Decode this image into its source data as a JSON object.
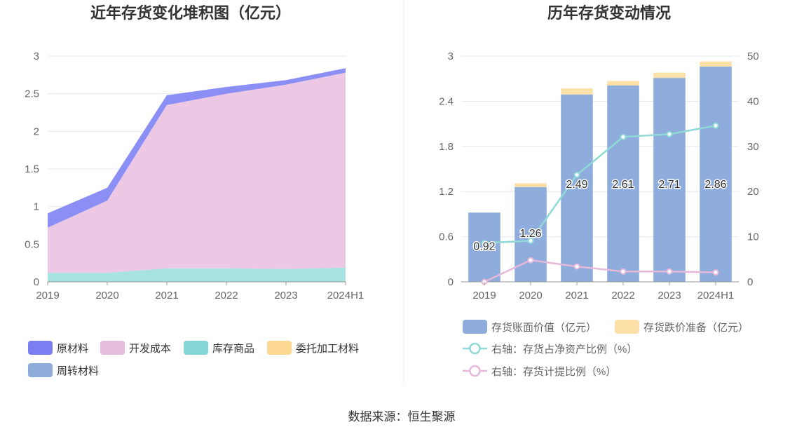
{
  "source": "数据来源：恒生聚源",
  "chart_data": [
    {
      "type": "area",
      "stacked": true,
      "title": "近年存货变化堆积图（亿元）",
      "categories": [
        "2019",
        "2020",
        "2021",
        "2022",
        "2023",
        "2024H1"
      ],
      "ylim": [
        0,
        3
      ],
      "yticks": [
        "0",
        "0.5",
        "1",
        "1.5",
        "2",
        "2.5",
        "3"
      ],
      "ytick_values": [
        0,
        0.5,
        1,
        1.5,
        2,
        2.5,
        3
      ],
      "grid": true,
      "legend_position": "bottom-left",
      "series": [
        {
          "name": "原材料",
          "values": [
            0.19,
            0.17,
            0.13,
            0.09,
            0.06,
            0.06
          ],
          "color": "#8b8ef5"
        },
        {
          "name": "开发成本",
          "values": [
            0.6,
            0.96,
            2.17,
            2.32,
            2.45,
            2.59
          ],
          "color": "#ecc8e4"
        },
        {
          "name": "库存商品",
          "values": [
            0.12,
            0.12,
            0.18,
            0.18,
            0.17,
            0.19
          ],
          "color": "#a6e3e1"
        },
        {
          "name": "委托加工材料",
          "values": [
            0,
            0,
            0,
            0,
            0,
            0
          ],
          "color": "#fdd893"
        },
        {
          "name": "周转材料",
          "values": [
            0,
            0,
            0,
            0,
            0,
            0
          ],
          "color": "#8eacdc"
        }
      ],
      "legend": [
        {
          "name": "原材料",
          "color": "#7b7ef0"
        },
        {
          "name": "开发成本",
          "color": "#e6bcdc"
        },
        {
          "name": "库存商品",
          "color": "#84d6d4"
        },
        {
          "name": "委托加工材料",
          "color": "#fdd893"
        },
        {
          "name": "周转材料",
          "color": "#8eacdc"
        }
      ]
    },
    {
      "type": "bar",
      "title": "历年存货变动情况",
      "categories": [
        "2019",
        "2020",
        "2021",
        "2022",
        "2023",
        "2024H1"
      ],
      "ylim": [
        0,
        3
      ],
      "yticks": [
        "0",
        "0.6",
        "1.2",
        "1.8",
        "2.4",
        "3"
      ],
      "ytick_values": [
        0,
        0.6,
        1.2,
        1.8,
        2.4,
        3
      ],
      "y2lim": [
        0,
        50
      ],
      "y2ticks": [
        "0",
        "10",
        "20",
        "30",
        "40",
        "50"
      ],
      "y2tick_values": [
        0,
        10,
        20,
        30,
        40,
        50
      ],
      "grid": true,
      "legend_position": "bottom",
      "bars": [
        {
          "name": "存货账面价值（亿元）",
          "values": [
            0.92,
            1.26,
            2.49,
            2.61,
            2.71,
            2.86
          ],
          "labels": [
            "0.92",
            "1.26",
            "2.49",
            "2.61",
            "2.71",
            "2.86"
          ],
          "color": "#8eacdc"
        },
        {
          "name": "存货跌价准备（亿元）",
          "values": [
            0,
            0.05,
            0.08,
            0.06,
            0.07,
            0.07
          ],
          "color": "#fde0a8"
        }
      ],
      "lines": [
        {
          "name": "右轴：存货占净资产比例（%）",
          "values": [
            8.6,
            9.1,
            23.7,
            32.1,
            32.7,
            34.6
          ],
          "color": "#8fd9d6"
        },
        {
          "name": "右轴：存货计提比例（%）",
          "values": [
            0,
            4.8,
            3.4,
            2.3,
            2.3,
            2.1
          ],
          "color": "#e6b8d9"
        }
      ]
    }
  ]
}
